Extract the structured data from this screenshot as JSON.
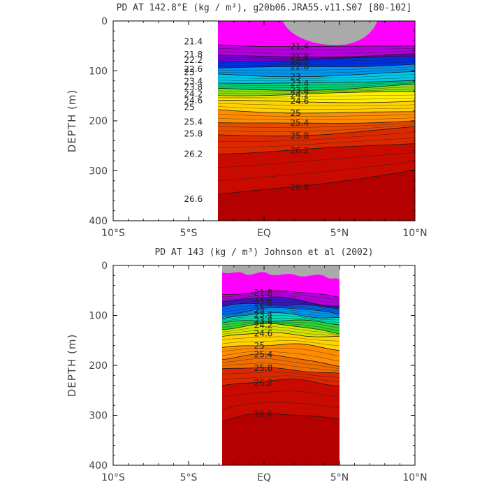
{
  "colors": {
    "fill_ramp": [
      "#ff00ff",
      "#e600ee",
      "#b400dc",
      "#7800d2",
      "#3c14c8",
      "#0030e0",
      "#0064f0",
      "#0096f0",
      "#00c8e6",
      "#00dcb4",
      "#00d278",
      "#32d232",
      "#8cdc14",
      "#d2e600",
      "#fff000",
      "#ffd200",
      "#ffaa00",
      "#ff8c00",
      "#f06e00",
      "#e64b00",
      "#dc2800",
      "#d21400",
      "#c80a00",
      "#b40000"
    ],
    "land": "#aaaaaa"
  },
  "chart_data": [
    {
      "type": "heatmap",
      "title": "PD AT 142.8°E (kg / m³), g20b06.JRA55.v11.S07 [80-102]",
      "ylabel": "DEPTH (m)",
      "xlabel": "",
      "x_ticks": [
        "10°S",
        "5°S",
        "EQ",
        "5°N",
        "10°N"
      ],
      "y_ticks": [
        "0",
        "100",
        "200",
        "300",
        "400"
      ],
      "xlim": [
        -10,
        10
      ],
      "ylim": [
        400,
        0
      ],
      "data_xrange": [
        -6.9,
        10
      ],
      "contour_levels": [
        21.4,
        21.8,
        22.2,
        22.6,
        23.0,
        23.4,
        23.8,
        24.2,
        24.6,
        25.0,
        25.4,
        25.8,
        26.2,
        26.6
      ],
      "contour_labels": [
        "21.4",
        "21.8",
        "22.2",
        "22.6",
        "23",
        "23.4",
        "23.8",
        "24.2",
        "24.6",
        "25",
        "25.4",
        "25.8",
        "26.2",
        "26.6"
      ],
      "isopycnal_depths_at_edges": {
        "21.8": [
          62,
          68
        ],
        "22.2": [
          76,
          74
        ],
        "22.6": [
          96,
          84
        ],
        "23.4": [
          118,
          116
        ],
        "24.2": [
          142,
          144
        ],
        "24.6": [
          158,
          160
        ],
        "25.0": [
          175,
          180
        ],
        "25.4": [
          200,
          196
        ],
        "25.8": [
          225,
          215
        ],
        "26.2": [
          262,
          247
        ],
        "26.6": [
          360,
          300
        ]
      }
    },
    {
      "type": "heatmap",
      "title": "PD AT 143 (kg / m³) Johnson et al (2002)",
      "ylabel": "DEPTH (m)",
      "xlabel": "",
      "x_ticks": [
        "10°S",
        "5°S",
        "EQ",
        "5°N",
        "10°N"
      ],
      "y_ticks": [
        "0",
        "100",
        "200",
        "300",
        "400"
      ],
      "xlim": [
        -10,
        10
      ],
      "ylim": [
        400,
        0
      ],
      "data_xrange": [
        -2.8,
        5
      ],
      "contour_levels": [
        21.8,
        22.2,
        22.6,
        23.0,
        23.4,
        23.8,
        24.2,
        24.6,
        25.0,
        25.4,
        25.8,
        26.2,
        26.6
      ],
      "contour_labels": [
        "21.8",
        "22.2",
        "22.6",
        "23",
        "23.4",
        "23.8",
        "24.2",
        "24.6",
        "25",
        "25.4",
        "25.8",
        "26.2",
        "26.6"
      ],
      "isopycnal_depths_at_edges": {
        "21.8": [
          58,
          60
        ],
        "22.2": [
          72,
          75
        ],
        "23.4": [
          108,
          100
        ],
        "24.2": [
          125,
          130
        ],
        "24.6": [
          145,
          140
        ],
        "25.0": [
          165,
          165
        ],
        "25.4": [
          185,
          195
        ],
        "25.8": [
          210,
          215
        ],
        "26.2": [
          240,
          235
        ],
        "26.6": [
          310,
          300
        ]
      }
    }
  ]
}
